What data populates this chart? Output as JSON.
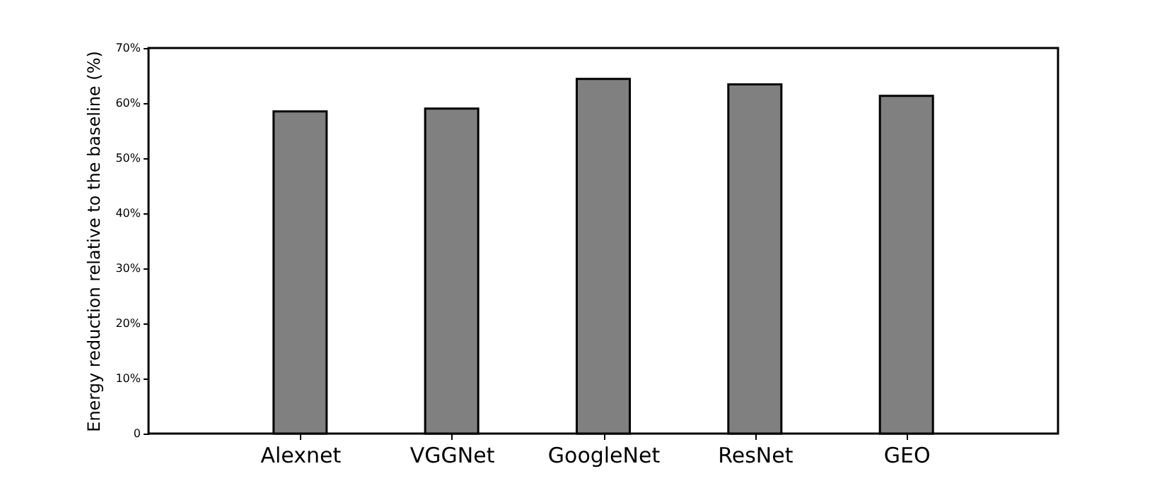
{
  "chart_data": {
    "type": "bar",
    "ylabel": "Energy reduction relative to the baseline (%)",
    "categories": [
      "Alexnet",
      "VGGNet",
      "GoogleNet",
      "ResNet",
      "GEO"
    ],
    "values": [
      58.5,
      59.0,
      64.4,
      63.4,
      61.3
    ],
    "color": "#808080",
    "ylim": [
      0,
      70
    ],
    "yticks": [
      {
        "value": 0,
        "label": "0"
      },
      {
        "value": 10,
        "label": "10%"
      },
      {
        "value": 20,
        "label": "20%"
      },
      {
        "value": 30,
        "label": "30%"
      },
      {
        "value": 40,
        "label": "40%"
      },
      {
        "value": 50,
        "label": "50%"
      },
      {
        "value": 60,
        "label": "60%"
      },
      {
        "value": 70,
        "label": "70%"
      }
    ],
    "grid": false
  }
}
